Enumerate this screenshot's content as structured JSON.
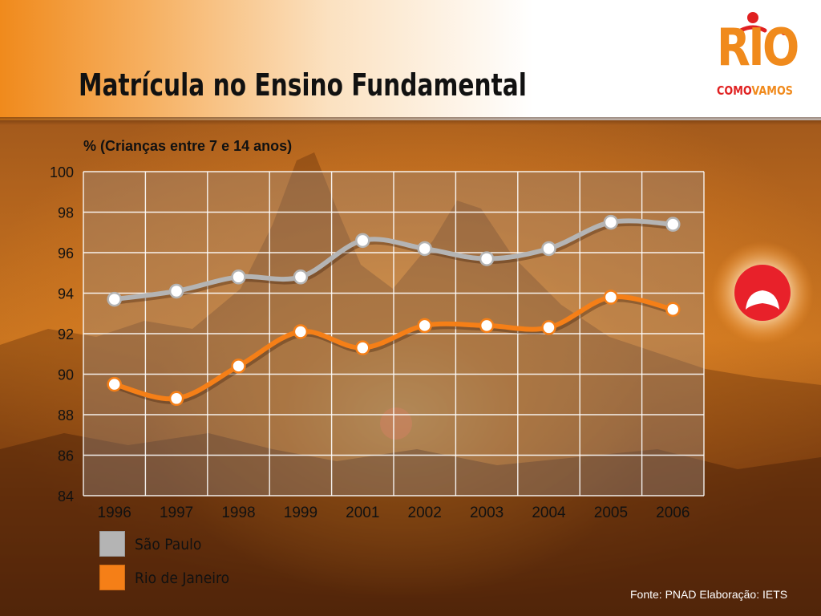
{
  "slide": {
    "title": "Matrícula no Ensino Fundamental",
    "source": "Fonte: PNAD Elaboração: IETS"
  },
  "logo": {
    "word": "RIO",
    "sub_a": "COMO",
    "sub_b": "VAMOS",
    "colors": {
      "orange": "#f08a1c",
      "red": "#e02020"
    }
  },
  "indicator": {
    "icon": "sad-face-icon",
    "color": "#e8212a"
  },
  "chart_data": {
    "type": "line",
    "title": "",
    "ylabel": "% (Crianças entre 7 e 14 anos)",
    "xlabel": "",
    "categories": [
      "1996",
      "1997",
      "1998",
      "1999",
      "2001",
      "2002",
      "2003",
      "2004",
      "2005",
      "2006"
    ],
    "ylim": [
      84,
      100
    ],
    "yticks": [
      84,
      86,
      88,
      90,
      92,
      94,
      96,
      98,
      100
    ],
    "grid": true,
    "legend_position": "bottom-left",
    "series": [
      {
        "name": "São Paulo",
        "color": "#b4b4b4",
        "values": [
          93.7,
          94.1,
          94.8,
          94.8,
          96.6,
          96.2,
          95.7,
          96.2,
          97.5,
          97.4
        ]
      },
      {
        "name": "Rio de Janeiro",
        "color": "#f57f17",
        "values": [
          89.5,
          88.8,
          90.4,
          92.1,
          91.3,
          92.4,
          92.4,
          92.3,
          93.8,
          93.2
        ]
      }
    ]
  }
}
